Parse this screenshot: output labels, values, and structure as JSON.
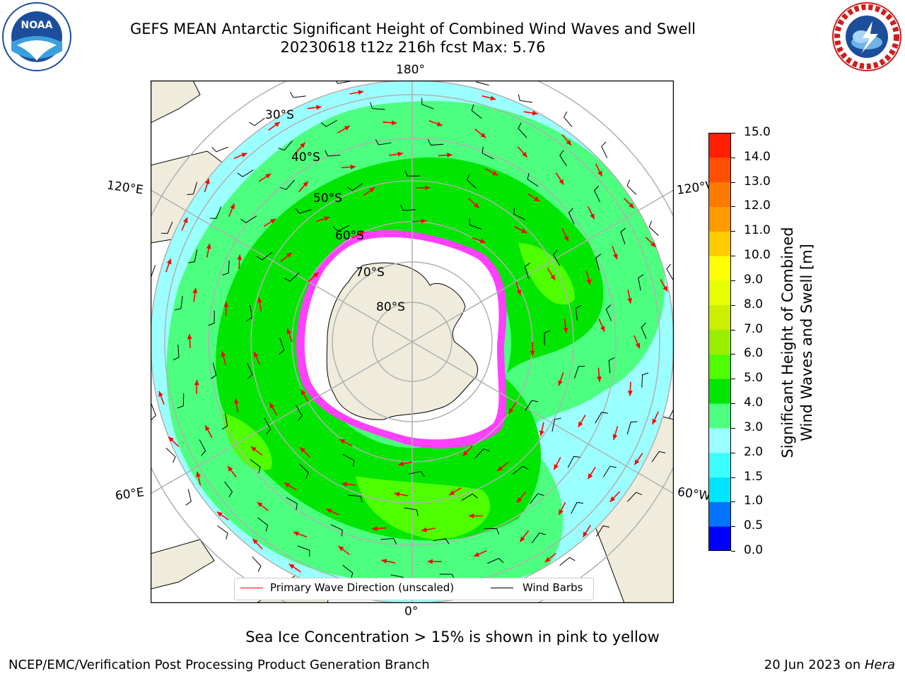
{
  "header": {
    "title_line1": "GEFS MEAN Antarctic Significant Height of Combined Wind Waves and Swell",
    "title_line2": "20230618 t12z 216h fcst   Max: 5.76"
  },
  "logos": {
    "left_name": "NOAA",
    "left_ring_text": "NATIONAL OCEANIC AND ATMOSPHERIC ADMINISTRATION · U.S. DEPARTMENT OF COMMERCE",
    "right_ring_text": "NATIONAL WEATHER SERVICE"
  },
  "map": {
    "lon_labels": {
      "top": "180°",
      "bottom": "0°",
      "left_upper": "120°E",
      "right_upper": "120°W",
      "left_lower": "60°E",
      "right_lower": "60°W"
    },
    "lat_labels": [
      "30°S",
      "40°S",
      "50°S",
      "60°S",
      "70°S",
      "80°S"
    ],
    "legend": {
      "wave": "Primary Wave Direction (unscaled)",
      "barb": "Wind Barbs"
    }
  },
  "colorbar": {
    "title_line1": "Significant Height of Combined",
    "title_line2": "Wind Waves and Swell [m]",
    "ticks": [
      "0.0",
      "0.5",
      "1.0",
      "1.5",
      "2.0",
      "3.0",
      "4.0",
      "5.0",
      "6.0",
      "7.0",
      "8.0",
      "9.0",
      "10.0",
      "11.0",
      "12.0",
      "13.0",
      "14.0",
      "15.0"
    ],
    "colors": [
      "#0000ff",
      "#0073ff",
      "#00e5ff",
      "#3dffff",
      "#9cffff",
      "#4dff7f",
      "#00e600",
      "#4dff00",
      "#99ee00",
      "#ccee00",
      "#e6ff00",
      "#ffff00",
      "#ffcc00",
      "#ff9900",
      "#ff7a00",
      "#ff5000",
      "#ff1e00"
    ]
  },
  "notes": {
    "ice": "Sea Ice Concentration > 15% is shown in pink to yellow"
  },
  "footer": {
    "left": "NCEP/EMC/Verification Post Processing Product Generation Branch",
    "right_prefix": "20 Jun 2023 on ",
    "right_machine": "Hera"
  },
  "wave_field": {
    "colors": {
      "ocean_low": "#9cffff",
      "band_3_4": "#4dff7f",
      "band_4_5": "#00e600",
      "band_5_6": "#4dff00",
      "land": "#efecdc",
      "ice_shelf": "#ffffff",
      "ice_edge": "#ff40ff",
      "arrow": "#ff0000"
    }
  }
}
